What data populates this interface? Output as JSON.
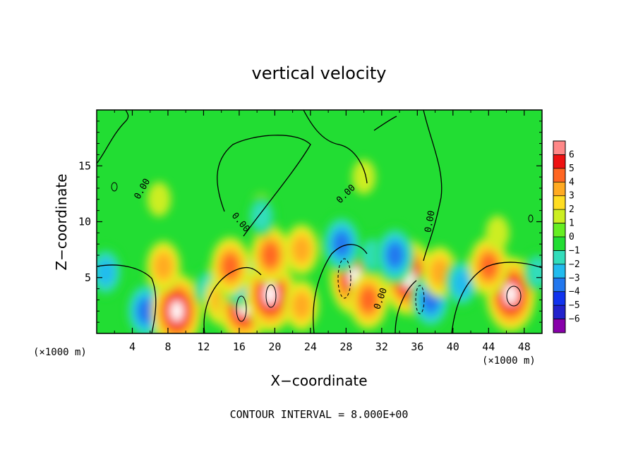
{
  "chart_data": {
    "type": "heatmap",
    "title": "vertical velocity",
    "xlabel": "X−coordinate",
    "ylabel": "Z−coordinate",
    "x_unit": "(×1000 m)",
    "xlim": [
      0,
      50
    ],
    "ylim": [
      0,
      20
    ],
    "x_ticks": [
      4,
      8,
      12,
      16,
      20,
      24,
      28,
      32,
      36,
      40,
      44,
      48
    ],
    "y_ticks": [
      5,
      10,
      15
    ],
    "colorbar": {
      "levels": [
        -6,
        -5,
        -4,
        -3,
        -2,
        -1,
        0,
        1,
        2,
        3,
        4,
        5,
        6
      ],
      "labels": [
        "6",
        "5",
        "4",
        "3",
        "2",
        "1",
        "0",
        "−1",
        "−2",
        "−3",
        "−4",
        "−5",
        "−6"
      ],
      "colors": [
        "#8800aa",
        "#2222cc",
        "#1133ee",
        "#2277ee",
        "#22bbee",
        "#33ddbb",
        "#22dd33",
        "#66ee22",
        "#ccee22",
        "#ffdd22",
        "#ffaa22",
        "#ff6622",
        "#ee1111",
        "#ff8888"
      ]
    },
    "contour_labels": [
      "0.00",
      "0.00",
      "0.00",
      "0.00",
      "0.00"
    ],
    "footer": "CONTOUR INTERVAL = 8.000E+00",
    "features": [
      {
        "x": 5.5,
        "z": 2.0,
        "w": -4
      },
      {
        "x": 1.0,
        "z": 5.5,
        "w": -3
      },
      {
        "x": 9.0,
        "z": 2.0,
        "w": 6
      },
      {
        "x": 7.5,
        "z": 6.0,
        "w": 3
      },
      {
        "x": 12.5,
        "z": 4.0,
        "w": -2
      },
      {
        "x": 14.0,
        "z": 3.0,
        "w": 3
      },
      {
        "x": 16.5,
        "z": 2.5,
        "w": 6
      },
      {
        "x": 16.0,
        "z": 5.0,
        "w": -4
      },
      {
        "x": 15.0,
        "z": 6.0,
        "w": 4
      },
      {
        "x": 19.5,
        "z": 3.5,
        "w": 6
      },
      {
        "x": 19.5,
        "z": 7.0,
        "w": 4
      },
      {
        "x": 23.0,
        "z": 7.5,
        "w": 3
      },
      {
        "x": 23.0,
        "z": 2.5,
        "w": 3
      },
      {
        "x": 18.5,
        "z": 11.0,
        "w": 1
      },
      {
        "x": 29.0,
        "z": 5.0,
        "w": 6
      },
      {
        "x": 27.5,
        "z": 8.0,
        "w": -4
      },
      {
        "x": 30.5,
        "z": 3.0,
        "w": 4
      },
      {
        "x": 31.0,
        "z": 7.0,
        "w": -2
      },
      {
        "x": 35.0,
        "z": 5.0,
        "w": 6
      },
      {
        "x": 33.5,
        "z": 7.0,
        "w": -4
      },
      {
        "x": 37.5,
        "z": 3.0,
        "w": -4
      },
      {
        "x": 38.5,
        "z": 5.5,
        "w": 3
      },
      {
        "x": 41.0,
        "z": 4.5,
        "w": -3
      },
      {
        "x": 46.5,
        "z": 3.5,
        "w": 6
      },
      {
        "x": 44.0,
        "z": 6.0,
        "w": 4
      },
      {
        "x": 49.5,
        "z": 5.5,
        "w": -2
      },
      {
        "x": 18.5,
        "z": 10.5,
        "w": -2
      },
      {
        "x": 30.0,
        "z": 14.0,
        "w": 1
      },
      {
        "x": 45.0,
        "z": 9.0,
        "w": 1
      },
      {
        "x": 7.0,
        "z": 12.0,
        "w": 1
      }
    ]
  }
}
